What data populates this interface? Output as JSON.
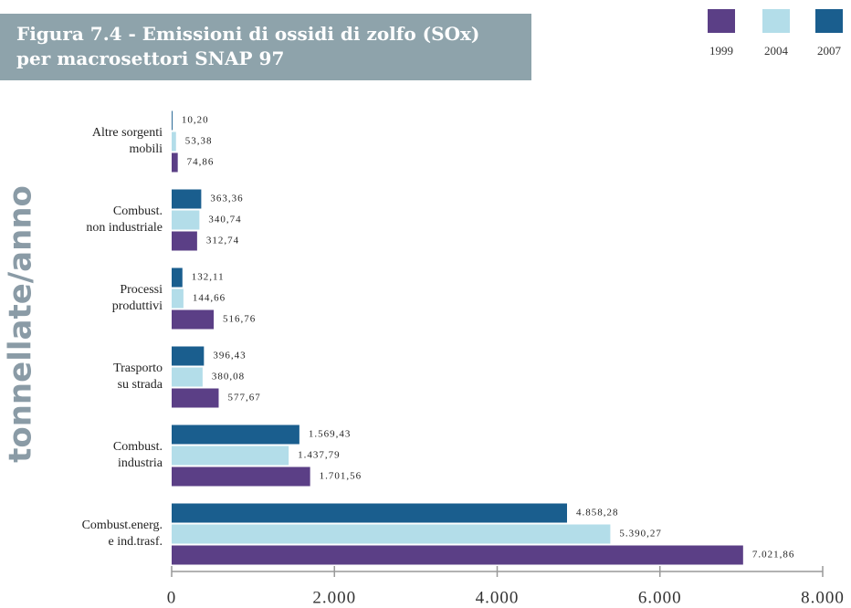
{
  "chart_data": {
    "type": "barh",
    "title": "Figura 7.4 - Emissioni di ossidi di zolfo (SOx)\nper macrosettori SNAP 97",
    "y_label": "tonnellate/anno",
    "categories": [
      "Altre sorgenti\nmobili",
      "Combust.\nnon industriale",
      "Processi\nproduttivi",
      "Trasporto\nsu strada",
      "Combust.\nindustria",
      "Combust.energ.\ne ind.trasf."
    ],
    "series": [
      {
        "name": "1999",
        "color": "#5b3f86",
        "values": [
          74.86,
          312.74,
          516.76,
          577.67,
          1701.56,
          7021.86
        ],
        "value_labels": [
          "74,86",
          "312,74",
          "516,76",
          "577,67",
          "1.701,56",
          "7.021,86"
        ]
      },
      {
        "name": "2004",
        "color": "#b3dde9",
        "values": [
          53.38,
          340.74,
          144.66,
          380.08,
          1437.79,
          5390.27
        ],
        "value_labels": [
          "53,38",
          "340,74",
          "144,66",
          "380,08",
          "1.437,79",
          "5.390,27"
        ]
      },
      {
        "name": "2007",
        "color": "#1a5e8e",
        "values": [
          10.2,
          363.36,
          132.11,
          396.43,
          1569.43,
          4858.28
        ],
        "value_labels": [
          "10,20",
          "363,36",
          "132,11",
          "396,43",
          "1.569,43",
          "4.858,28"
        ]
      }
    ],
    "xlim": [
      0,
      8000
    ],
    "xticks": [
      0,
      {
        "value": 2000,
        "label": "2.000"
      },
      {
        "value": 4000,
        "label": "4.000"
      },
      {
        "value": 6000,
        "label": "6.000"
      },
      {
        "value": 8000,
        "label": "8.000"
      }
    ],
    "legend": "top-right"
  }
}
